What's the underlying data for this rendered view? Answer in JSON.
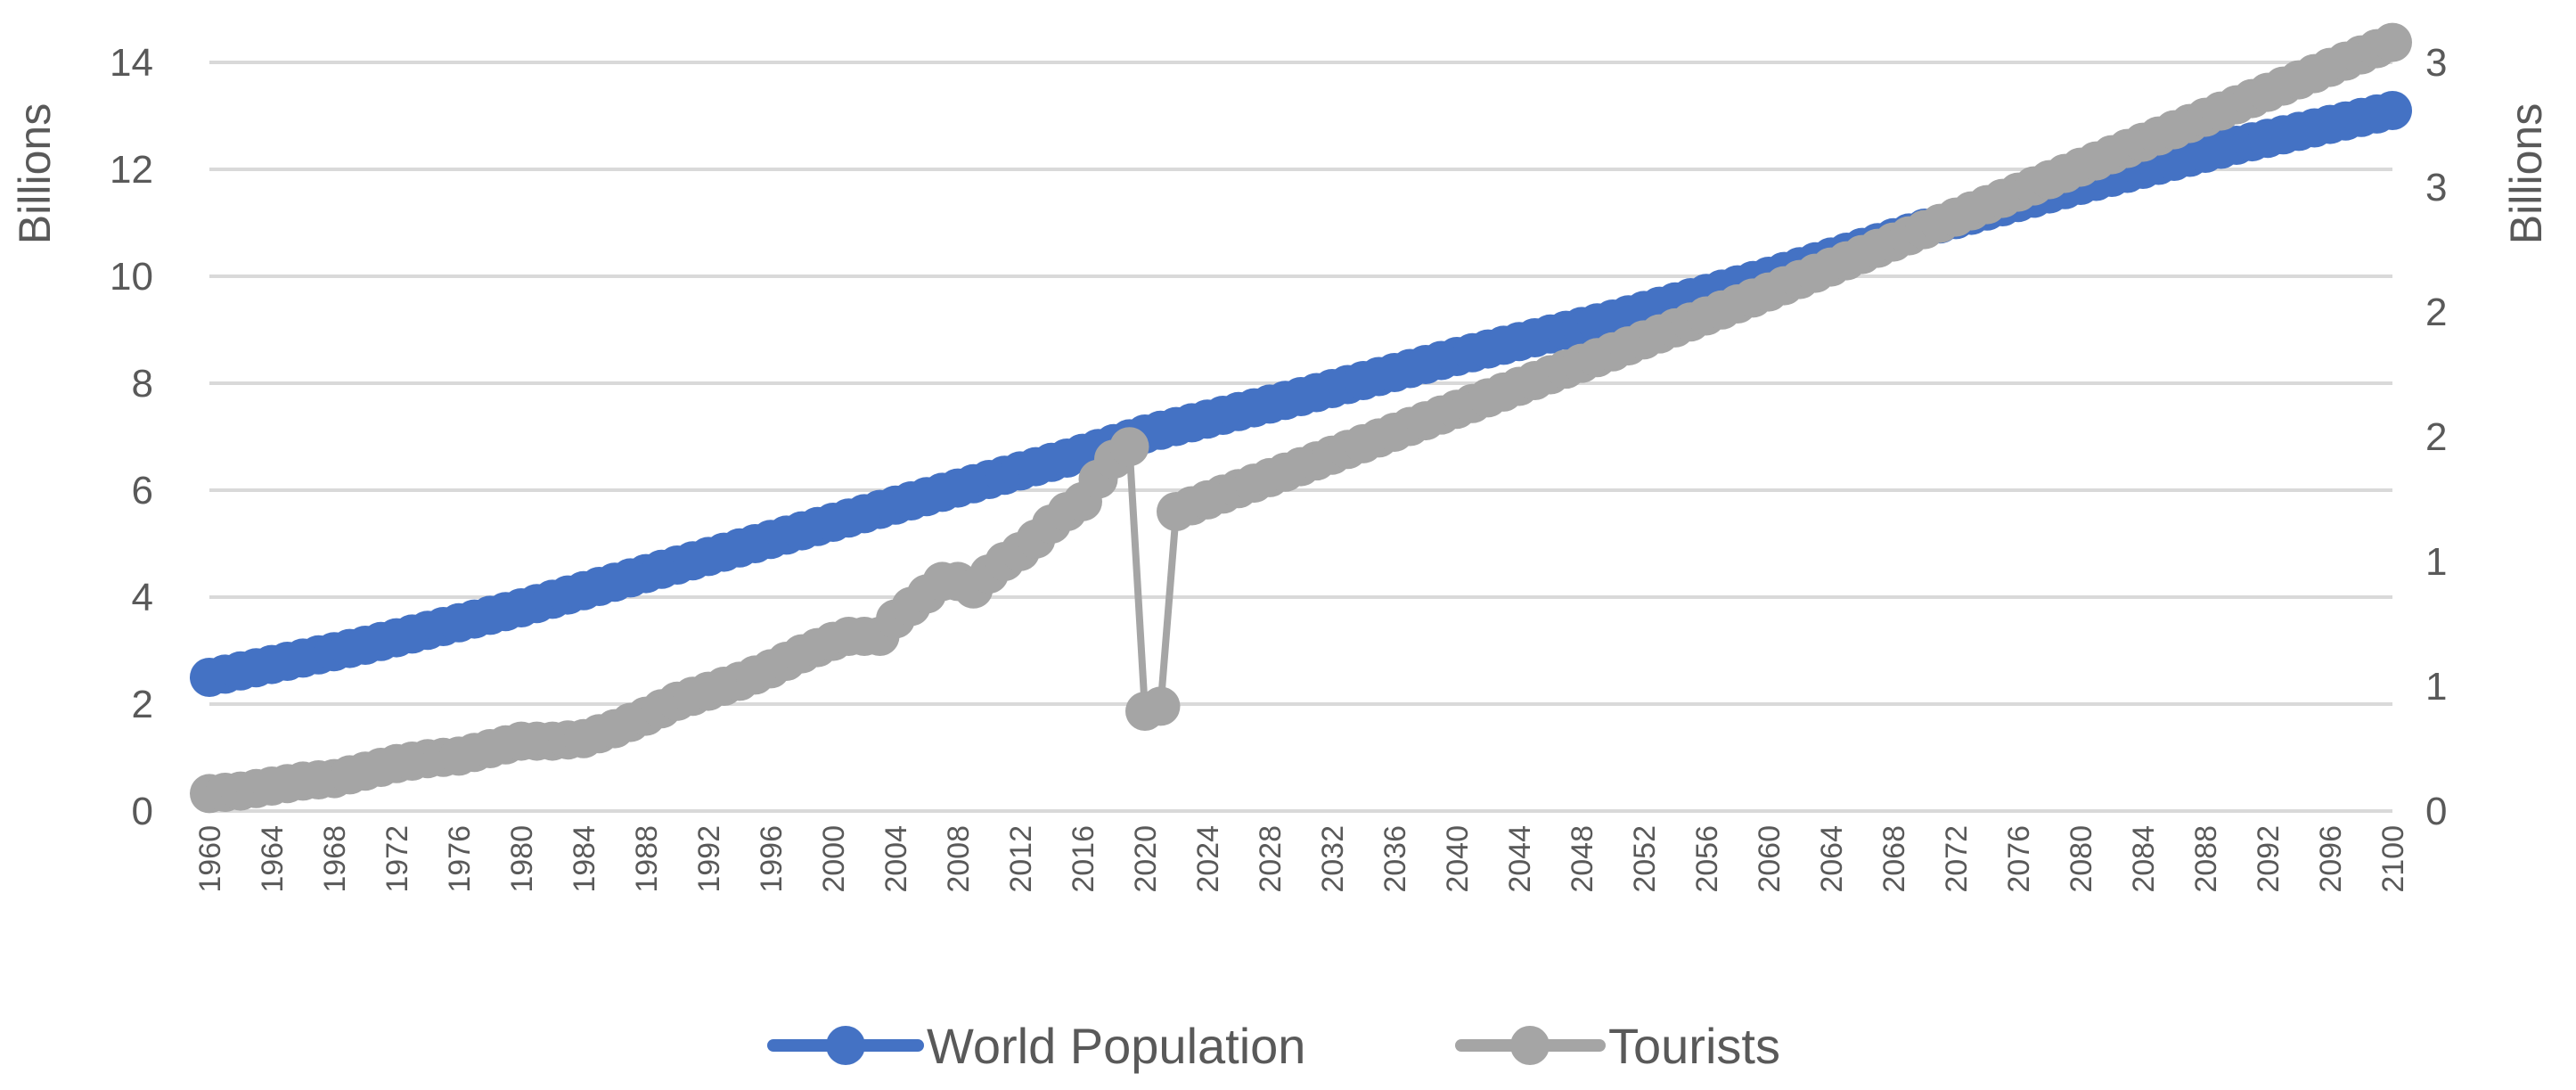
{
  "chart_data": {
    "type": "line",
    "y_left_label": "Billions",
    "y_right_label": "Billions",
    "y_left_range": [
      0,
      14
    ],
    "y_left_ticks": [
      "0",
      "2",
      "4",
      "6",
      "8",
      "10",
      "12",
      "14"
    ],
    "y_right_range": [
      0,
      3
    ],
    "y_right_ticks": [
      "0",
      "1",
      "1",
      "2",
      "2",
      "3",
      "3"
    ],
    "x_range": [
      1960,
      2100
    ],
    "x_tick_labels": [
      "1960",
      "1964",
      "1968",
      "1972",
      "1976",
      "1980",
      "1984",
      "1988",
      "1992",
      "1996",
      "2000",
      "2004",
      "2008",
      "2012",
      "2016",
      "2020",
      "2024",
      "2028",
      "2032",
      "2036",
      "2040",
      "2044",
      "2048",
      "2052",
      "2056",
      "2060",
      "2064",
      "2068",
      "2072",
      "2076",
      "2080",
      "2084",
      "2088",
      "2092",
      "2096",
      "2100"
    ],
    "grid": "horizontal",
    "legend_position": "bottom",
    "series": [
      {
        "name": "World Population",
        "axis": "left",
        "color": "#4472C4",
        "x": [
          1960,
          1965,
          1970,
          1975,
          1980,
          1985,
          1990,
          1995,
          2000,
          2005,
          2010,
          2015,
          2020,
          2025,
          2030,
          2040,
          2050,
          2060,
          2070,
          2080,
          2090,
          2100
        ],
        "y": [
          2.5,
          2.8,
          3.1,
          3.45,
          3.8,
          4.2,
          4.6,
          5.0,
          5.4,
          5.8,
          6.2,
          6.6,
          7.05,
          7.4,
          7.75,
          8.5,
          9.2,
          10.0,
          10.9,
          11.7,
          12.45,
          13.1
        ]
      },
      {
        "name": "Tourists",
        "axis": "right",
        "color": "#A5A5A5",
        "x": [
          1960,
          1962,
          1964,
          1966,
          1968,
          1970,
          1972,
          1974,
          1976,
          1978,
          1980,
          1982,
          1984,
          1986,
          1988,
          1990,
          1992,
          1994,
          1996,
          1998,
          2000,
          2001,
          2002,
          2003,
          2004,
          2005,
          2006,
          2007,
          2008,
          2009,
          2010,
          2011,
          2012,
          2013,
          2014,
          2015,
          2016,
          2017,
          2018,
          2019,
          2020,
          2021,
          2022,
          2025,
          2030,
          2040,
          2050,
          2060,
          2070,
          2080,
          2090,
          2100
        ],
        "y": [
          0.07,
          0.08,
          0.1,
          0.12,
          0.13,
          0.16,
          0.19,
          0.21,
          0.22,
          0.25,
          0.28,
          0.28,
          0.29,
          0.33,
          0.38,
          0.44,
          0.48,
          0.52,
          0.57,
          0.63,
          0.68,
          0.7,
          0.7,
          0.7,
          0.77,
          0.82,
          0.87,
          0.92,
          0.92,
          0.89,
          0.95,
          1.0,
          1.04,
          1.09,
          1.15,
          1.2,
          1.24,
          1.33,
          1.41,
          1.46,
          0.4,
          0.42,
          1.2,
          1.27,
          1.38,
          1.61,
          1.84,
          2.08,
          2.33,
          2.58,
          2.83,
          3.08
        ]
      }
    ]
  }
}
